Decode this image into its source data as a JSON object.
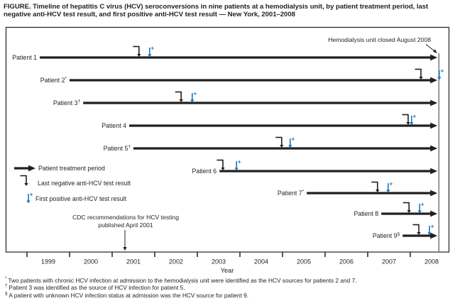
{
  "title": "FIGURE. Timeline of hepatitis C virus (HCV) seroconversions in nine patients at a hemodialysis unit, by patient treatment period, last negative anti-HCV test result, and first positive anti-HCV test result — New York, 2001–2008",
  "colors": {
    "ink": "#231f20",
    "blue": "#1c75bc",
    "background": "#ffffff"
  },
  "legend": {
    "entries": [
      {
        "marker": "treatment-arrow",
        "label": "Patient treatment period"
      },
      {
        "marker": "last-negative",
        "label": "Last negative anti-HCV test result"
      },
      {
        "marker": "first-positive",
        "label": "First positive anti-HCV test result"
      }
    ]
  },
  "annotations": {
    "closure_text": "Hemodialysis unit closed August 2008",
    "closure_year": 2008.67,
    "cdc_line1": "CDC recommendations for HCV testing",
    "cdc_line2": "published April 2001",
    "cdc_year": 2001.3
  },
  "axis": {
    "label": "Year",
    "years": [
      "1999",
      "2000",
      "2001",
      "2002",
      "2003",
      "2004",
      "2005",
      "2006",
      "2007",
      "2008"
    ],
    "start_year": 1999
  },
  "chart_data": {
    "type": "timeline",
    "title": "Timeline of HCV seroconversions in nine patients at a hemodialysis unit, New York, 2001–2008",
    "xlabel": "Year",
    "x_range": [
      1999,
      2008.92
    ],
    "legend_entries": [
      "Patient treatment period",
      "Last negative anti-HCV test result",
      "First positive anti-HCV test result"
    ],
    "patients": [
      {
        "label": "Patient 1",
        "sup": "",
        "start": 1999.3,
        "end": 2008.67,
        "last_negative": 2001.63,
        "first_positive": 2001.88
      },
      {
        "label": "Patient 2",
        "sup": "*",
        "start": 2000.0,
        "end": 2008.67,
        "last_negative": 2008.25,
        "first_positive": 2008.68
      },
      {
        "label": "Patient 3",
        "sup": "†",
        "start": 2000.32,
        "end": 2008.67,
        "last_negative": 2002.62,
        "first_positive": 2002.88
      },
      {
        "label": "Patient 4",
        "sup": "",
        "start": 2001.4,
        "end": 2008.67,
        "last_negative": 2007.95,
        "first_positive": 2008.03
      },
      {
        "label": "Patient 5",
        "sup": "†",
        "start": 2001.5,
        "end": 2008.67,
        "last_negative": 2004.98,
        "first_positive": 2005.18
      },
      {
        "label": "Patient 6",
        "sup": "",
        "start": 2003.52,
        "end": 2008.67,
        "last_negative": 2003.6,
        "first_positive": 2003.92
      },
      {
        "label": "Patient 7",
        "sup": "*",
        "start": 2005.57,
        "end": 2008.67,
        "last_negative": 2007.23,
        "first_positive": 2007.48
      },
      {
        "label": "Patient 8",
        "sup": "",
        "start": 2007.32,
        "end": 2008.67,
        "last_negative": 2007.97,
        "first_positive": 2008.22
      },
      {
        "label": "Patient 9",
        "sup": "§",
        "start": 2007.82,
        "end": 2008.67,
        "last_negative": 2008.2,
        "first_positive": 2008.45
      }
    ]
  },
  "footnotes": [
    {
      "symbol": "*",
      "text": "Two patients with chronic HCV infection at admission to the hemodialysis unit were identified as the HCV sources for patients 2 and 7."
    },
    {
      "symbol": "†",
      "text": "Patient 3 was identified as the source of HCV infection for patient 5."
    },
    {
      "symbol": "§",
      "text": "A patient with unknown HCV infection status at admission was the HCV source for patient 9."
    }
  ]
}
